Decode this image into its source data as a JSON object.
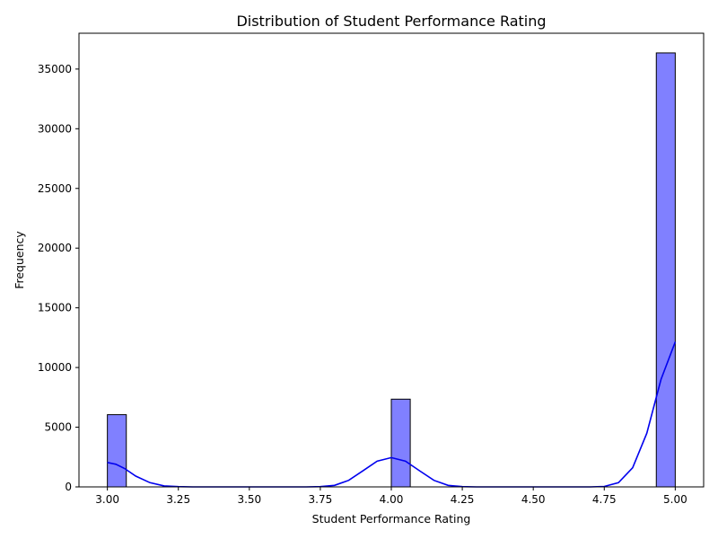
{
  "chart_data": {
    "type": "bar",
    "subtype": "histogram-with-kde",
    "title": "Distribution of Student Performance Rating",
    "xlabel": "Student Performance Rating",
    "ylabel": "Frequency",
    "xlim": [
      2.9,
      5.1
    ],
    "ylim": [
      0,
      38000
    ],
    "xticks": [
      "3.00",
      "3.25",
      "3.50",
      "3.75",
      "4.00",
      "4.25",
      "4.50",
      "4.75",
      "5.00"
    ],
    "yticks": [
      "0",
      "5000",
      "10000",
      "15000",
      "20000",
      "25000",
      "30000",
      "35000"
    ],
    "grid": false,
    "bars": [
      {
        "x_start": 3.0,
        "x_end": 3.0667,
        "value": 6050
      },
      {
        "x_start": 4.0,
        "x_end": 4.0667,
        "value": 7350
      },
      {
        "x_start": 4.9333,
        "x_end": 5.0,
        "value": 36350
      }
    ],
    "kde": {
      "x": [
        3.0,
        3.03,
        3.06,
        3.1,
        3.15,
        3.2,
        3.25,
        3.3,
        3.4,
        3.5,
        3.6,
        3.7,
        3.75,
        3.8,
        3.85,
        3.9,
        3.95,
        4.0,
        4.05,
        4.1,
        4.15,
        4.2,
        4.25,
        4.3,
        4.4,
        4.5,
        4.6,
        4.7,
        4.75,
        4.8,
        4.85,
        4.9,
        4.95,
        5.0
      ],
      "y": [
        2050,
        1900,
        1550,
        900,
        350,
        80,
        20,
        0,
        0,
        0,
        0,
        0,
        20,
        130,
        550,
        1350,
        2150,
        2450,
        2150,
        1350,
        550,
        130,
        20,
        0,
        0,
        0,
        0,
        0,
        40,
        350,
        1600,
        4500,
        9000,
        12150
      ]
    },
    "colors": {
      "bar_fill": "#8080ff",
      "bar_edge": "#000000",
      "kde_line": "#0000ee"
    }
  }
}
